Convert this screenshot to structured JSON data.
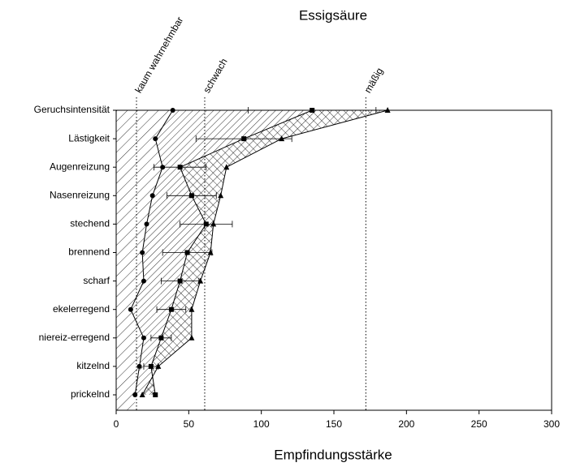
{
  "chart_data": {
    "type": "line",
    "orientation": "horizontal",
    "title": "Essigsäure",
    "xlabel": "Empfindungsstärke",
    "categories": [
      "Geruchsintensität",
      "Lästigkeit",
      "Augenreizung",
      "Nasenreizung",
      "stechend",
      "brennend",
      "scharf",
      "ekelerregend",
      "niereiz-erregend",
      "kitzelnd",
      "prickelnd"
    ],
    "series": [
      {
        "marker": "circle",
        "color": "#000000",
        "values": [
          39,
          27,
          32,
          25,
          21,
          18,
          19,
          10,
          19,
          16,
          13
        ]
      },
      {
        "marker": "square",
        "color": "#000000",
        "values": [
          135,
          88,
          44,
          52,
          62,
          49,
          44,
          38,
          31,
          24,
          27
        ],
        "errors": [
          44,
          33,
          18,
          17,
          18,
          17,
          13,
          10,
          7,
          5,
          0
        ]
      },
      {
        "marker": "triangle",
        "color": "#000000",
        "values": [
          187,
          114,
          76,
          72,
          67,
          65,
          58,
          52,
          52,
          29,
          18
        ]
      }
    ],
    "xlim": [
      0,
      300
    ],
    "xticks": [
      0,
      50,
      100,
      150,
      200,
      250,
      300
    ],
    "reference_lines": [
      {
        "value": 14,
        "label": "kaum wahrnehmbar"
      },
      {
        "value": 61,
        "label": "schwach"
      },
      {
        "value": 172,
        "label": "mäßig"
      }
    ]
  }
}
